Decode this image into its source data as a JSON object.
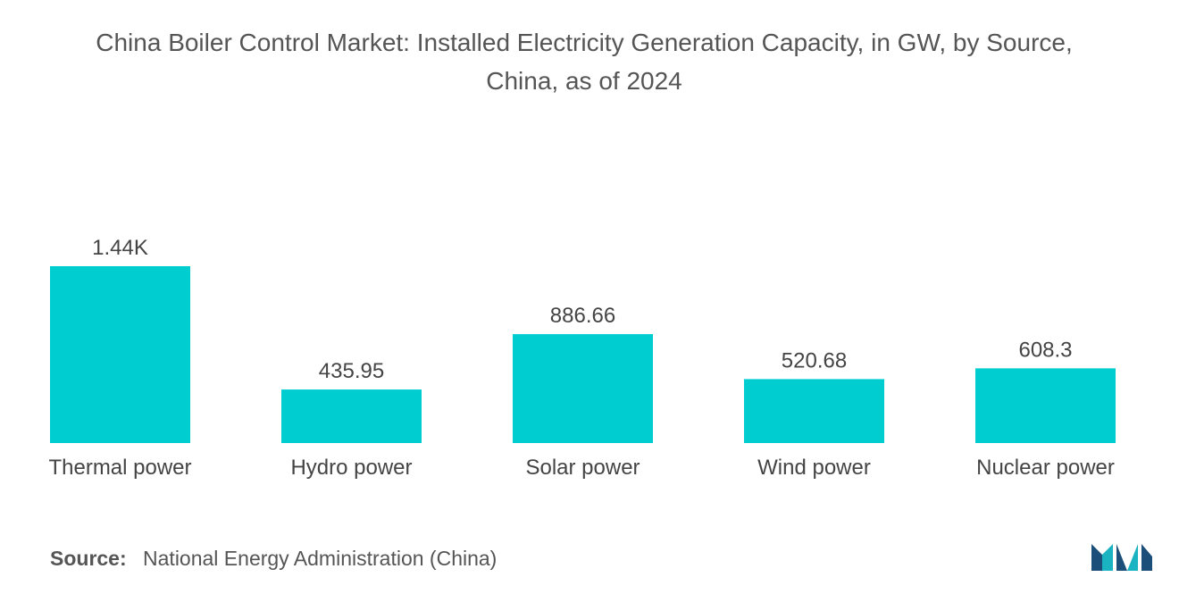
{
  "title_line1": "China Boiler Control Market: Installed Electricity Generation Capacity, in GW, by Source,",
  "title_line2": "China, as of 2024",
  "source_label": "Source:",
  "source_text": "National Energy Administration (China)",
  "colors": {
    "bar": "#00CDD0",
    "text": "#444444",
    "logo_dark": "#1B4F7A",
    "logo_teal": "#19B3C2"
  },
  "logo_icon": "mordor-intelligence-logo",
  "chart_data": {
    "type": "bar",
    "categories": [
      "Thermal power",
      "Hydro power",
      "Solar power",
      "Wind power",
      "Nuclear power"
    ],
    "values": [
      1440,
      435.95,
      886.66,
      520.68,
      608.3
    ],
    "value_labels": [
      "1.44K",
      "435.95",
      "886.66",
      "520.68",
      "608.3"
    ],
    "xlabel": "",
    "ylabel": "",
    "ylim": [
      0,
      1440
    ],
    "grid": false,
    "legend": "none"
  }
}
